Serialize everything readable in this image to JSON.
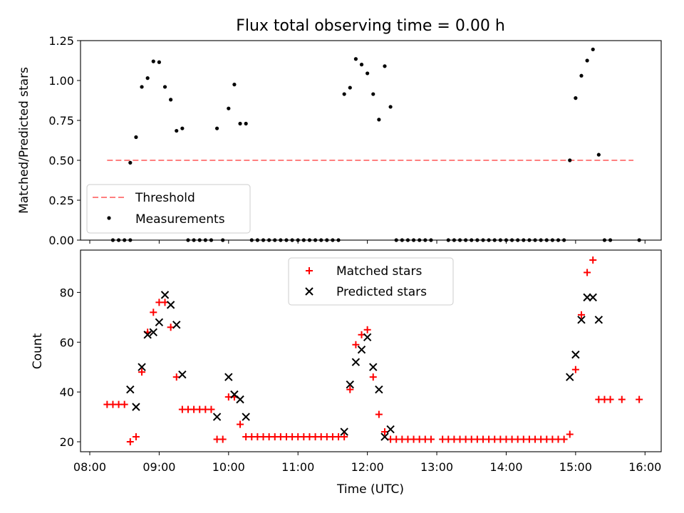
{
  "figure_title": "Flux total observing time = 0.00 h",
  "colors": {
    "threshold": "#ff7f7f",
    "measurements": "#000000",
    "matched": "#ff0000",
    "predicted": "#000000"
  },
  "chart_data": [
    {
      "type": "scatter",
      "title": "Flux total observing time = 0.00 h",
      "xlabel": "",
      "ylabel": "Matched/Predicted stars",
      "xlim": [
        "07:52",
        "16:14"
      ],
      "ylim": [
        0,
        1.25
      ],
      "y_ticks": [
        "0.00",
        "0.25",
        "0.50",
        "0.75",
        "1.00",
        "1.25"
      ],
      "legend_position": "lower-left",
      "legend": [
        "Threshold",
        "Measurements"
      ],
      "series": [
        {
          "name": "Threshold",
          "kind": "dashed-line",
          "points": [
            [
              "08:15",
              0.5
            ],
            [
              "15:50",
              0.5
            ]
          ]
        },
        {
          "name": "Measurements",
          "kind": "dot",
          "points": [
            [
              "08:20",
              0.0
            ],
            [
              "08:25",
              0.0
            ],
            [
              "08:30",
              0.0
            ],
            [
              "08:35",
              0.0
            ],
            [
              "08:35",
              0.485
            ],
            [
              "08:40",
              0.645
            ],
            [
              "08:45",
              0.96
            ],
            [
              "08:50",
              1.015
            ],
            [
              "08:55",
              1.12
            ],
            [
              "09:00",
              1.115
            ],
            [
              "09:05",
              0.96
            ],
            [
              "09:10",
              0.88
            ],
            [
              "09:15",
              0.685
            ],
            [
              "09:20",
              0.7
            ],
            [
              "09:25",
              0.0
            ],
            [
              "09:30",
              0.0
            ],
            [
              "09:35",
              0.0
            ],
            [
              "09:40",
              0.0
            ],
            [
              "09:45",
              0.0
            ],
            [
              "09:50",
              0.7
            ],
            [
              "09:55",
              0.0
            ],
            [
              "10:00",
              0.825
            ],
            [
              "10:05",
              0.975
            ],
            [
              "10:10",
              0.73
            ],
            [
              "10:15",
              0.73
            ],
            [
              "10:20",
              0.0
            ],
            [
              "10:25",
              0.0
            ],
            [
              "10:30",
              0.0
            ],
            [
              "10:35",
              0.0
            ],
            [
              "10:40",
              0.0
            ],
            [
              "10:45",
              0.0
            ],
            [
              "10:50",
              0.0
            ],
            [
              "10:55",
              0.0
            ],
            [
              "11:00",
              0.0
            ],
            [
              "11:05",
              0.0
            ],
            [
              "11:10",
              0.0
            ],
            [
              "11:15",
              0.0
            ],
            [
              "11:20",
              0.0
            ],
            [
              "11:25",
              0.0
            ],
            [
              "11:30",
              0.0
            ],
            [
              "11:35",
              0.0
            ],
            [
              "11:40",
              0.915
            ],
            [
              "11:45",
              0.955
            ],
            [
              "11:50",
              1.135
            ],
            [
              "11:55",
              1.1
            ],
            [
              "12:00",
              1.045
            ],
            [
              "12:05",
              0.915
            ],
            [
              "12:10",
              0.755
            ],
            [
              "12:15",
              1.09
            ],
            [
              "12:20",
              0.835
            ],
            [
              "12:25",
              0.0
            ],
            [
              "12:30",
              0.0
            ],
            [
              "12:35",
              0.0
            ],
            [
              "12:40",
              0.0
            ],
            [
              "12:45",
              0.0
            ],
            [
              "12:50",
              0.0
            ],
            [
              "12:55",
              0.0
            ],
            [
              "13:10",
              0.0
            ],
            [
              "13:15",
              0.0
            ],
            [
              "13:20",
              0.0
            ],
            [
              "13:25",
              0.0
            ],
            [
              "13:30",
              0.0
            ],
            [
              "13:35",
              0.0
            ],
            [
              "13:40",
              0.0
            ],
            [
              "13:45",
              0.0
            ],
            [
              "13:50",
              0.0
            ],
            [
              "13:55",
              0.0
            ],
            [
              "14:00",
              0.0
            ],
            [
              "14:05",
              0.0
            ],
            [
              "14:10",
              0.0
            ],
            [
              "14:15",
              0.0
            ],
            [
              "14:20",
              0.0
            ],
            [
              "14:25",
              0.0
            ],
            [
              "14:30",
              0.0
            ],
            [
              "14:35",
              0.0
            ],
            [
              "14:40",
              0.0
            ],
            [
              "14:45",
              0.0
            ],
            [
              "14:50",
              0.0
            ],
            [
              "14:55",
              0.5
            ],
            [
              "15:00",
              0.89
            ],
            [
              "15:05",
              1.03
            ],
            [
              "15:10",
              1.125
            ],
            [
              "15:15",
              1.195
            ],
            [
              "15:20",
              0.535
            ],
            [
              "15:25",
              0.0
            ],
            [
              "15:30",
              0.0
            ],
            [
              "15:55",
              0.0
            ]
          ]
        }
      ]
    },
    {
      "type": "scatter",
      "title": "",
      "xlabel": "Time (UTC)",
      "ylabel": "Count",
      "xlim": [
        "07:52",
        "16:14"
      ],
      "ylim": [
        16,
        97
      ],
      "x_ticks": [
        "08:00",
        "09:00",
        "10:00",
        "11:00",
        "12:00",
        "13:00",
        "14:00",
        "15:00",
        "16:00"
      ],
      "y_ticks": [
        "20",
        "40",
        "60",
        "80"
      ],
      "legend_position": "top-center",
      "legend": [
        "Matched stars",
        "Predicted stars"
      ],
      "series": [
        {
          "name": "Matched stars",
          "marker": "+",
          "points": [
            [
              "08:15",
              35
            ],
            [
              "08:20",
              35
            ],
            [
              "08:25",
              35
            ],
            [
              "08:30",
              35
            ],
            [
              "08:35",
              20
            ],
            [
              "08:40",
              22
            ],
            [
              "08:45",
              48
            ],
            [
              "08:50",
              64
            ],
            [
              "08:55",
              72
            ],
            [
              "09:00",
              76
            ],
            [
              "09:05",
              76
            ],
            [
              "09:10",
              66
            ],
            [
              "09:15",
              46
            ],
            [
              "09:20",
              33
            ],
            [
              "09:25",
              33
            ],
            [
              "09:30",
              33
            ],
            [
              "09:35",
              33
            ],
            [
              "09:40",
              33
            ],
            [
              "09:45",
              33
            ],
            [
              "09:50",
              21
            ],
            [
              "09:55",
              21
            ],
            [
              "10:00",
              38
            ],
            [
              "10:05",
              38
            ],
            [
              "10:10",
              27
            ],
            [
              "10:15",
              22
            ],
            [
              "10:20",
              22
            ],
            [
              "10:25",
              22
            ],
            [
              "10:30",
              22
            ],
            [
              "10:35",
              22
            ],
            [
              "10:40",
              22
            ],
            [
              "10:45",
              22
            ],
            [
              "10:50",
              22
            ],
            [
              "10:55",
              22
            ],
            [
              "11:00",
              22
            ],
            [
              "11:05",
              22
            ],
            [
              "11:10",
              22
            ],
            [
              "11:15",
              22
            ],
            [
              "11:20",
              22
            ],
            [
              "11:25",
              22
            ],
            [
              "11:30",
              22
            ],
            [
              "11:35",
              22
            ],
            [
              "11:40",
              22
            ],
            [
              "11:45",
              41
            ],
            [
              "11:50",
              59
            ],
            [
              "11:55",
              63
            ],
            [
              "12:00",
              65
            ],
            [
              "12:05",
              46
            ],
            [
              "12:10",
              31
            ],
            [
              "12:15",
              24
            ],
            [
              "12:20",
              21
            ],
            [
              "12:25",
              21
            ],
            [
              "12:30",
              21
            ],
            [
              "12:35",
              21
            ],
            [
              "12:40",
              21
            ],
            [
              "12:45",
              21
            ],
            [
              "12:50",
              21
            ],
            [
              "12:55",
              21
            ],
            [
              "13:05",
              21
            ],
            [
              "13:10",
              21
            ],
            [
              "13:15",
              21
            ],
            [
              "13:20",
              21
            ],
            [
              "13:25",
              21
            ],
            [
              "13:30",
              21
            ],
            [
              "13:35",
              21
            ],
            [
              "13:40",
              21
            ],
            [
              "13:45",
              21
            ],
            [
              "13:50",
              21
            ],
            [
              "13:55",
              21
            ],
            [
              "14:00",
              21
            ],
            [
              "14:05",
              21
            ],
            [
              "14:10",
              21
            ],
            [
              "14:15",
              21
            ],
            [
              "14:20",
              21
            ],
            [
              "14:25",
              21
            ],
            [
              "14:30",
              21
            ],
            [
              "14:35",
              21
            ],
            [
              "14:40",
              21
            ],
            [
              "14:45",
              21
            ],
            [
              "14:50",
              21
            ],
            [
              "14:55",
              23
            ],
            [
              "15:00",
              49
            ],
            [
              "15:05",
              71
            ],
            [
              "15:10",
              88
            ],
            [
              "15:15",
              93
            ],
            [
              "15:20",
              37
            ],
            [
              "15:25",
              37
            ],
            [
              "15:30",
              37
            ],
            [
              "15:40",
              37
            ],
            [
              "15:55",
              37
            ]
          ]
        },
        {
          "name": "Predicted stars",
          "marker": "x",
          "points": [
            [
              "08:35",
              41
            ],
            [
              "08:40",
              34
            ],
            [
              "08:45",
              50
            ],
            [
              "08:50",
              63
            ],
            [
              "08:55",
              64
            ],
            [
              "09:00",
              68
            ],
            [
              "09:05",
              79
            ],
            [
              "09:10",
              75
            ],
            [
              "09:15",
              67
            ],
            [
              "09:20",
              47
            ],
            [
              "09:50",
              30
            ],
            [
              "10:00",
              46
            ],
            [
              "10:05",
              39
            ],
            [
              "10:10",
              37
            ],
            [
              "10:15",
              30
            ],
            [
              "11:40",
              24
            ],
            [
              "11:45",
              43
            ],
            [
              "11:50",
              52
            ],
            [
              "11:55",
              57
            ],
            [
              "12:00",
              62
            ],
            [
              "12:05",
              50
            ],
            [
              "12:10",
              41
            ],
            [
              "12:15",
              22
            ],
            [
              "12:20",
              25
            ],
            [
              "14:55",
              46
            ],
            [
              "15:00",
              55
            ],
            [
              "15:05",
              69
            ],
            [
              "15:10",
              78
            ],
            [
              "15:15",
              78
            ],
            [
              "15:20",
              69
            ]
          ]
        }
      ]
    }
  ]
}
